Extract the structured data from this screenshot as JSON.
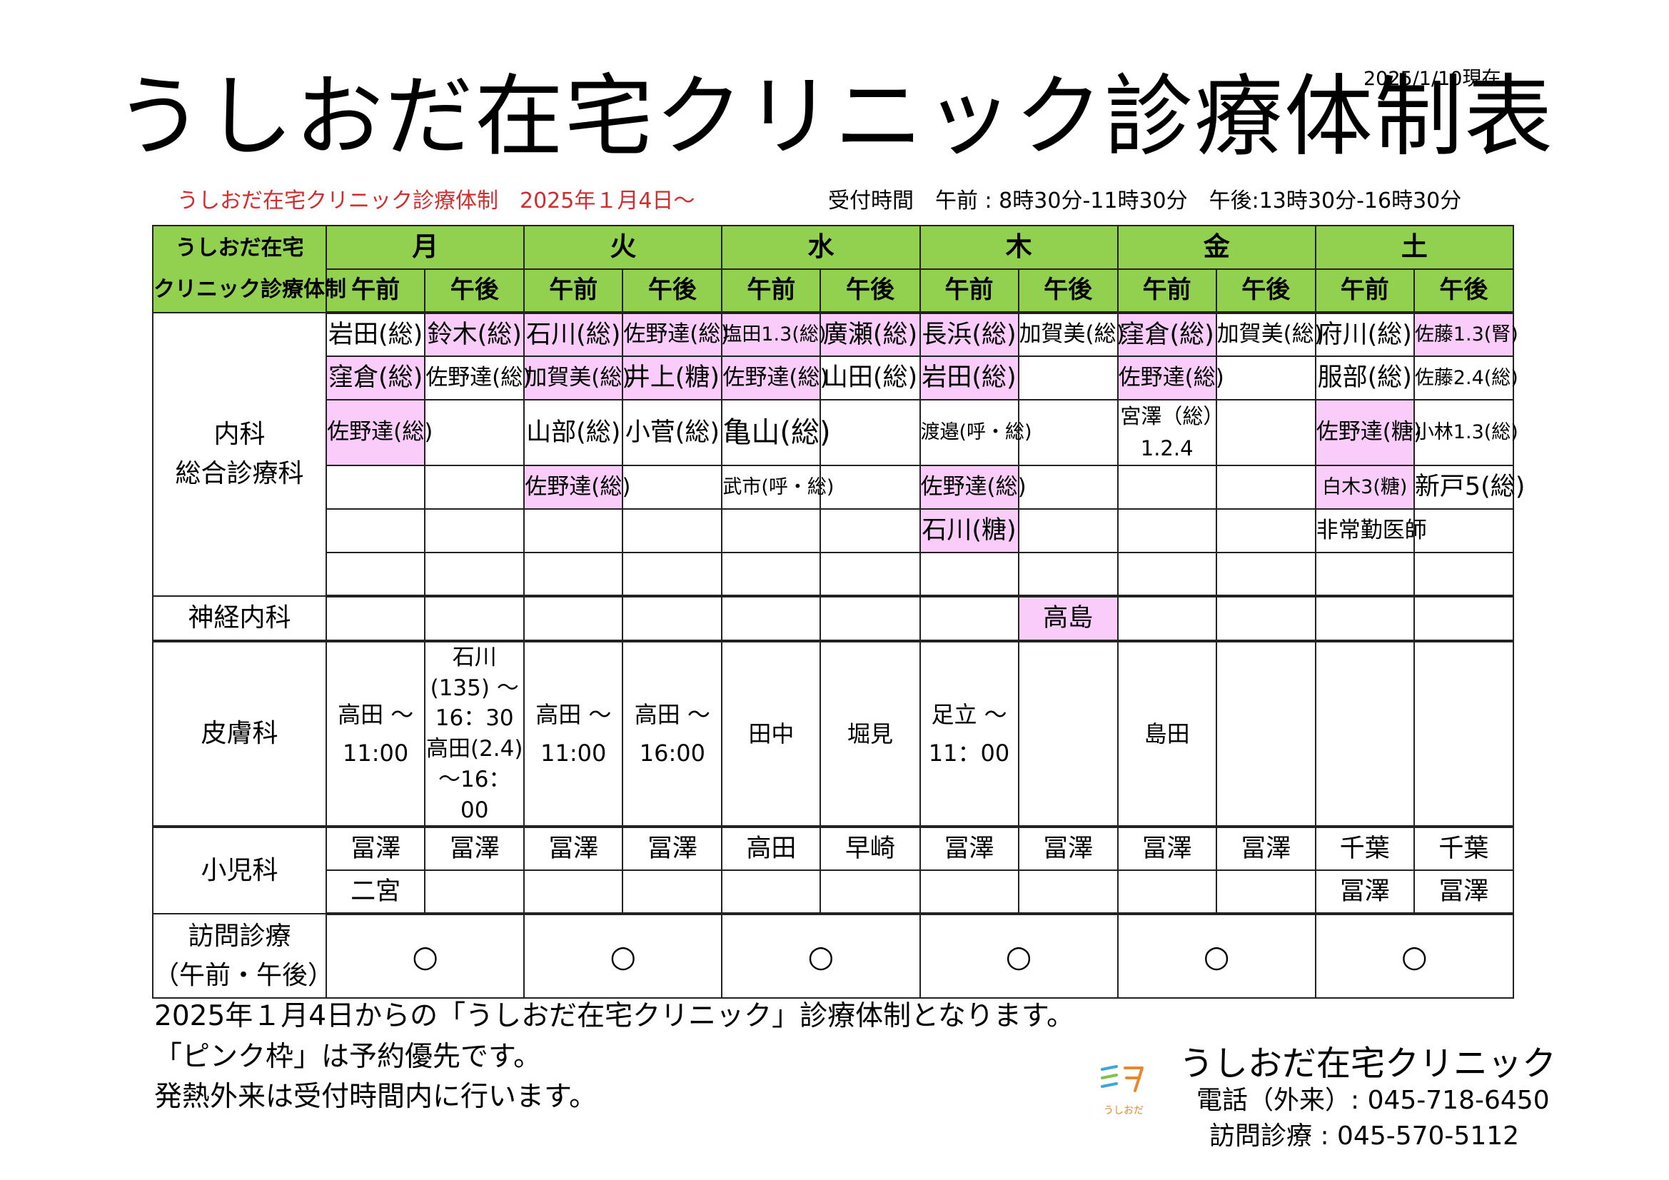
{
  "date": "2025/1/10現在",
  "title": "うしおだ在宅クリニック診療体制表",
  "subtitle_red": "うしおだ在宅クリニック診療体制　2025年１月4日～",
  "reception_hours": "受付時間　午前 : 8時30分-11時30分　午後:13時30分-16時30分",
  "table": {
    "corner_line1": "うしおだ在宅",
    "corner_line2": "クリニック診療体制",
    "days": [
      "月",
      "火",
      "水",
      "木",
      "金",
      "土"
    ],
    "am": "午前",
    "pm": "午後",
    "departments": {
      "internal_1": "内科",
      "internal_2": "総合診療科",
      "neuro": "神経内科",
      "derm": "皮膚科",
      "peds": "小児科",
      "visit_1": "訪問診療",
      "visit_2": "（午前・午後）"
    },
    "internal": [
      [
        "岩田(総)",
        "鈴木(総)",
        "石川(総)",
        "佐野達(総)",
        "塩田1.3(総)",
        "廣瀬(総)",
        "長浜(総)",
        "加賀美(総)",
        "窪倉(総)",
        "加賀美(総)",
        "府川(総)",
        "佐藤1.3(腎)"
      ],
      [
        "窪倉(総)",
        "佐野達(総)",
        "加賀美(総)",
        "井上(糖)",
        "佐野達(総)",
        "山田(総)",
        "岩田(総)",
        "",
        "佐野達(総)",
        "",
        "服部(総)",
        "佐藤2.4(総)"
      ],
      [
        "佐野達(総)",
        "",
        "山部(総)",
        "小菅(総)",
        "亀山(総)",
        "",
        "渡邉(呼・総)",
        "",
        "宮澤（総）1.2.4",
        "",
        "佐野達(糖)",
        "小林1.3(総)"
      ],
      [
        "",
        "",
        "佐野達(総)",
        "",
        "武市(呼・総)",
        "",
        "佐野達(総)",
        "",
        "",
        "",
        "白木3(糖)",
        "新戸5(総)"
      ],
      [
        "",
        "",
        "",
        "",
        "",
        "",
        "石川(糖)",
        "",
        "",
        "",
        "非常勤医師",
        ""
      ],
      [
        "",
        "",
        "",
        "",
        "",
        "",
        "",
        "",
        "",
        "",
        "",
        ""
      ]
    ],
    "neuro": [
      "",
      "",
      "",
      "",
      "",
      "",
      "",
      "高島",
      "",
      "",
      "",
      ""
    ],
    "derm": [
      "高田 ～11:00",
      "石川(135) ～16：30 高田(2.4) ～16：00",
      "高田 ～11:00",
      "高田 ～16:00",
      "田中",
      "堀見",
      "足立 ～11：00",
      "",
      "島田",
      "",
      "",
      ""
    ],
    "peds": [
      [
        "冨澤",
        "冨澤",
        "冨澤",
        "冨澤",
        "高田",
        "早崎",
        "冨澤",
        "冨澤",
        "冨澤",
        "冨澤",
        "千葉",
        "千葉"
      ],
      [
        "二宮",
        "",
        "",
        "",
        "",
        "",
        "",
        "",
        "",
        "",
        "冨澤",
        "冨澤"
      ]
    ],
    "visit": [
      "○",
      "○",
      "○",
      "○",
      "○",
      "○"
    ]
  },
  "notes": [
    "2025年１月4日からの「うしおだ在宅クリニック」診療体制となります。",
    "「ピンク枠」は予約優先です。",
    "発熱外来は受付時間内に行います。"
  ],
  "logo_caption": "うしおだ",
  "clinic_name": "うしおだ在宅クリニック",
  "tel_outpatient": "電話（外来）: 045-718-6450",
  "tel_visit": "訪問診療 : 045-570-5112",
  "colors": {
    "header_green": "#92d050",
    "pink": "#f9ccfa",
    "red": "#d22d2d"
  }
}
